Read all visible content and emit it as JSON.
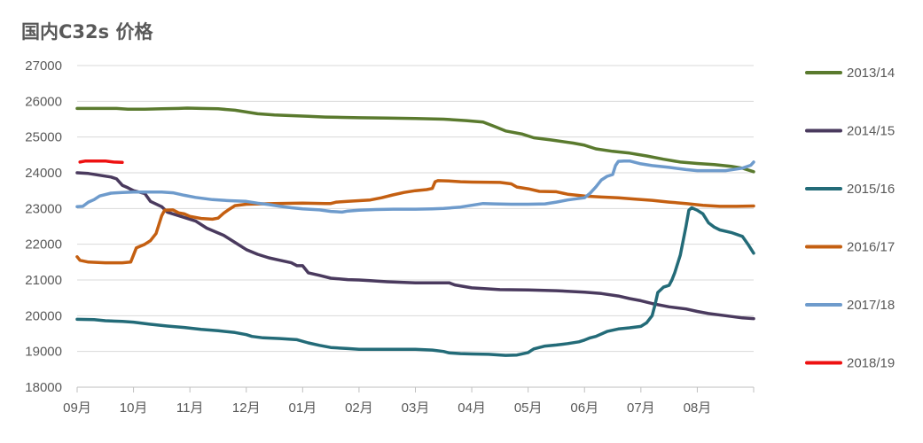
{
  "chart_data": {
    "type": "line",
    "title": "国内C32s 价格",
    "xlabel": "",
    "ylabel": "",
    "ylim": [
      18000,
      27000
    ],
    "yticks": [
      18000,
      19000,
      20000,
      21000,
      22000,
      23000,
      24000,
      25000,
      26000,
      27000
    ],
    "xticks": [
      "09月",
      "10月",
      "11月",
      "12月",
      "01月",
      "02月",
      "03月",
      "04月",
      "05月",
      "06月",
      "07月",
      "08月"
    ],
    "x_unit": "month index (0 = start of 09月, 12 = end of 08月)",
    "xlim": [
      0,
      12
    ],
    "grid": "horizontal",
    "legend_position": "right",
    "series": [
      {
        "name": "2013/14",
        "color": "#5a7a2e",
        "points": [
          [
            0.0,
            25800
          ],
          [
            0.3,
            25800
          ],
          [
            0.7,
            25800
          ],
          [
            0.9,
            25780
          ],
          [
            1.2,
            25780
          ],
          [
            1.5,
            25790
          ],
          [
            1.8,
            25800
          ],
          [
            1.95,
            25810
          ],
          [
            2.2,
            25800
          ],
          [
            2.5,
            25790
          ],
          [
            2.8,
            25750
          ],
          [
            3.0,
            25700
          ],
          [
            3.2,
            25650
          ],
          [
            3.5,
            25620
          ],
          [
            3.8,
            25600
          ],
          [
            4.1,
            25580
          ],
          [
            4.4,
            25560
          ],
          [
            4.7,
            25550
          ],
          [
            5.0,
            25540
          ],
          [
            5.5,
            25530
          ],
          [
            6.0,
            25520
          ],
          [
            6.5,
            25500
          ],
          [
            6.9,
            25460
          ],
          [
            7.2,
            25420
          ],
          [
            7.4,
            25300
          ],
          [
            7.6,
            25170
          ],
          [
            7.9,
            25080
          ],
          [
            8.1,
            24980
          ],
          [
            8.4,
            24920
          ],
          [
            8.8,
            24830
          ],
          [
            9.0,
            24770
          ],
          [
            9.2,
            24670
          ],
          [
            9.5,
            24600
          ],
          [
            9.8,
            24550
          ],
          [
            10.1,
            24470
          ],
          [
            10.4,
            24380
          ],
          [
            10.7,
            24300
          ],
          [
            11.0,
            24260
          ],
          [
            11.3,
            24230
          ],
          [
            11.6,
            24180
          ],
          [
            11.8,
            24130
          ],
          [
            12.0,
            24030
          ]
        ]
      },
      {
        "name": "2014/15",
        "color": "#4a3a5e",
        "points": [
          [
            0.0,
            24000
          ],
          [
            0.2,
            23980
          ],
          [
            0.4,
            23930
          ],
          [
            0.6,
            23880
          ],
          [
            0.7,
            23830
          ],
          [
            0.8,
            23650
          ],
          [
            0.9,
            23580
          ],
          [
            1.0,
            23500
          ],
          [
            1.2,
            23420
          ],
          [
            1.3,
            23200
          ],
          [
            1.5,
            23050
          ],
          [
            1.6,
            22900
          ],
          [
            1.9,
            22750
          ],
          [
            2.1,
            22650
          ],
          [
            2.3,
            22450
          ],
          [
            2.6,
            22250
          ],
          [
            2.8,
            22050
          ],
          [
            3.0,
            21850
          ],
          [
            3.2,
            21720
          ],
          [
            3.4,
            21620
          ],
          [
            3.6,
            21550
          ],
          [
            3.8,
            21480
          ],
          [
            3.9,
            21400
          ],
          [
            4.0,
            21400
          ],
          [
            4.1,
            21200
          ],
          [
            4.3,
            21130
          ],
          [
            4.5,
            21050
          ],
          [
            4.8,
            21010
          ],
          [
            5.0,
            21000
          ],
          [
            5.2,
            20980
          ],
          [
            5.5,
            20950
          ],
          [
            5.8,
            20930
          ],
          [
            6.0,
            20920
          ],
          [
            6.3,
            20920
          ],
          [
            6.6,
            20920
          ],
          [
            6.7,
            20860
          ],
          [
            7.0,
            20780
          ],
          [
            7.5,
            20730
          ],
          [
            8.0,
            20720
          ],
          [
            8.5,
            20700
          ],
          [
            9.0,
            20660
          ],
          [
            9.3,
            20620
          ],
          [
            9.6,
            20550
          ],
          [
            9.8,
            20480
          ],
          [
            10.0,
            20420
          ],
          [
            10.2,
            20340
          ],
          [
            10.5,
            20250
          ],
          [
            10.8,
            20190
          ],
          [
            11.0,
            20120
          ],
          [
            11.2,
            20060
          ],
          [
            11.5,
            20000
          ],
          [
            11.8,
            19940
          ],
          [
            12.0,
            19920
          ]
        ]
      },
      {
        "name": "2015/16",
        "color": "#236b78",
        "points": [
          [
            0.0,
            19900
          ],
          [
            0.3,
            19890
          ],
          [
            0.5,
            19860
          ],
          [
            0.8,
            19840
          ],
          [
            1.0,
            19820
          ],
          [
            1.3,
            19760
          ],
          [
            1.6,
            19710
          ],
          [
            1.9,
            19670
          ],
          [
            2.2,
            19620
          ],
          [
            2.5,
            19580
          ],
          [
            2.8,
            19530
          ],
          [
            3.0,
            19470
          ],
          [
            3.1,
            19420
          ],
          [
            3.3,
            19380
          ],
          [
            3.6,
            19360
          ],
          [
            3.9,
            19330
          ],
          [
            4.1,
            19240
          ],
          [
            4.3,
            19170
          ],
          [
            4.5,
            19110
          ],
          [
            4.8,
            19080
          ],
          [
            5.0,
            19060
          ],
          [
            5.5,
            19060
          ],
          [
            6.0,
            19060
          ],
          [
            6.3,
            19040
          ],
          [
            6.5,
            19000
          ],
          [
            6.6,
            18960
          ],
          [
            6.8,
            18940
          ],
          [
            7.0,
            18930
          ],
          [
            7.3,
            18920
          ],
          [
            7.6,
            18890
          ],
          [
            7.8,
            18900
          ],
          [
            8.0,
            18970
          ],
          [
            8.1,
            19070
          ],
          [
            8.3,
            19150
          ],
          [
            8.5,
            19180
          ],
          [
            8.7,
            19220
          ],
          [
            8.9,
            19270
          ],
          [
            9.0,
            19320
          ],
          [
            9.1,
            19380
          ],
          [
            9.2,
            19420
          ],
          [
            9.4,
            19560
          ],
          [
            9.6,
            19630
          ],
          [
            9.8,
            19660
          ],
          [
            10.0,
            19700
          ],
          [
            10.1,
            19800
          ],
          [
            10.2,
            20000
          ],
          [
            10.25,
            20300
          ],
          [
            10.3,
            20650
          ],
          [
            10.4,
            20800
          ],
          [
            10.5,
            20850
          ],
          [
            10.55,
            21000
          ],
          [
            10.6,
            21200
          ],
          [
            10.7,
            21700
          ],
          [
            10.8,
            22500
          ],
          [
            10.85,
            22950
          ],
          [
            10.9,
            23020
          ],
          [
            11.0,
            22950
          ],
          [
            11.1,
            22850
          ],
          [
            11.2,
            22600
          ],
          [
            11.3,
            22480
          ],
          [
            11.4,
            22400
          ],
          [
            11.6,
            22330
          ],
          [
            11.8,
            22220
          ],
          [
            11.9,
            22000
          ],
          [
            12.0,
            21750
          ]
        ]
      },
      {
        "name": "2016/17",
        "color": "#c45f11",
        "points": [
          [
            0.0,
            21650
          ],
          [
            0.05,
            21550
          ],
          [
            0.2,
            21500
          ],
          [
            0.5,
            21480
          ],
          [
            0.8,
            21480
          ],
          [
            0.95,
            21500
          ],
          [
            1.0,
            21700
          ],
          [
            1.05,
            21900
          ],
          [
            1.2,
            22000
          ],
          [
            1.3,
            22100
          ],
          [
            1.4,
            22300
          ],
          [
            1.5,
            22800
          ],
          [
            1.55,
            22950
          ],
          [
            1.7,
            22960
          ],
          [
            1.8,
            22880
          ],
          [
            1.9,
            22850
          ],
          [
            2.0,
            22780
          ],
          [
            2.2,
            22720
          ],
          [
            2.4,
            22700
          ],
          [
            2.5,
            22730
          ],
          [
            2.6,
            22870
          ],
          [
            2.7,
            22980
          ],
          [
            2.8,
            23080
          ],
          [
            3.0,
            23120
          ],
          [
            3.5,
            23140
          ],
          [
            4.0,
            23150
          ],
          [
            4.4,
            23140
          ],
          [
            4.5,
            23140
          ],
          [
            4.6,
            23180
          ],
          [
            4.8,
            23200
          ],
          [
            5.0,
            23220
          ],
          [
            5.2,
            23240
          ],
          [
            5.4,
            23300
          ],
          [
            5.6,
            23380
          ],
          [
            5.8,
            23450
          ],
          [
            6.0,
            23500
          ],
          [
            6.2,
            23530
          ],
          [
            6.3,
            23560
          ],
          [
            6.35,
            23750
          ],
          [
            6.4,
            23780
          ],
          [
            6.6,
            23770
          ],
          [
            6.8,
            23750
          ],
          [
            7.0,
            23740
          ],
          [
            7.5,
            23730
          ],
          [
            7.7,
            23690
          ],
          [
            7.8,
            23600
          ],
          [
            8.0,
            23550
          ],
          [
            8.2,
            23480
          ],
          [
            8.5,
            23470
          ],
          [
            8.7,
            23400
          ],
          [
            9.0,
            23350
          ],
          [
            9.3,
            23320
          ],
          [
            9.6,
            23300
          ],
          [
            9.9,
            23260
          ],
          [
            10.2,
            23230
          ],
          [
            10.5,
            23180
          ],
          [
            10.8,
            23140
          ],
          [
            11.1,
            23090
          ],
          [
            11.4,
            23060
          ],
          [
            11.7,
            23060
          ],
          [
            12.0,
            23070
          ]
        ]
      },
      {
        "name": "2017/18",
        "color": "#6e9bcc",
        "points": [
          [
            0.0,
            23050
          ],
          [
            0.1,
            23060
          ],
          [
            0.2,
            23180
          ],
          [
            0.3,
            23250
          ],
          [
            0.4,
            23350
          ],
          [
            0.6,
            23430
          ],
          [
            0.8,
            23450
          ],
          [
            1.0,
            23460
          ],
          [
            1.2,
            23460
          ],
          [
            1.5,
            23460
          ],
          [
            1.7,
            23440
          ],
          [
            1.9,
            23370
          ],
          [
            2.1,
            23310
          ],
          [
            2.4,
            23250
          ],
          [
            2.7,
            23220
          ],
          [
            3.0,
            23200
          ],
          [
            3.2,
            23150
          ],
          [
            3.4,
            23110
          ],
          [
            3.6,
            23060
          ],
          [
            3.8,
            23020
          ],
          [
            4.0,
            22990
          ],
          [
            4.3,
            22960
          ],
          [
            4.5,
            22920
          ],
          [
            4.7,
            22900
          ],
          [
            4.8,
            22930
          ],
          [
            5.0,
            22950
          ],
          [
            5.3,
            22970
          ],
          [
            5.6,
            22980
          ],
          [
            6.0,
            22980
          ],
          [
            6.3,
            22990
          ],
          [
            6.5,
            23000
          ],
          [
            6.8,
            23040
          ],
          [
            7.0,
            23090
          ],
          [
            7.2,
            23140
          ],
          [
            7.4,
            23130
          ],
          [
            7.7,
            23120
          ],
          [
            8.0,
            23120
          ],
          [
            8.3,
            23130
          ],
          [
            8.5,
            23180
          ],
          [
            8.7,
            23240
          ],
          [
            8.8,
            23260
          ],
          [
            9.0,
            23300
          ],
          [
            9.1,
            23430
          ],
          [
            9.2,
            23600
          ],
          [
            9.3,
            23800
          ],
          [
            9.4,
            23900
          ],
          [
            9.5,
            23950
          ],
          [
            9.55,
            24200
          ],
          [
            9.6,
            24320
          ],
          [
            9.7,
            24330
          ],
          [
            9.8,
            24330
          ],
          [
            10.0,
            24250
          ],
          [
            10.2,
            24200
          ],
          [
            10.5,
            24150
          ],
          [
            10.8,
            24090
          ],
          [
            11.0,
            24060
          ],
          [
            11.5,
            24060
          ],
          [
            11.8,
            24130
          ],
          [
            11.95,
            24210
          ],
          [
            12.0,
            24300
          ]
        ]
      },
      {
        "name": "2018/19",
        "color": "#ee1111",
        "points": [
          [
            0.05,
            24300
          ],
          [
            0.15,
            24330
          ],
          [
            0.3,
            24330
          ],
          [
            0.5,
            24330
          ],
          [
            0.55,
            24320
          ],
          [
            0.65,
            24300
          ],
          [
            0.8,
            24290
          ]
        ]
      }
    ]
  }
}
